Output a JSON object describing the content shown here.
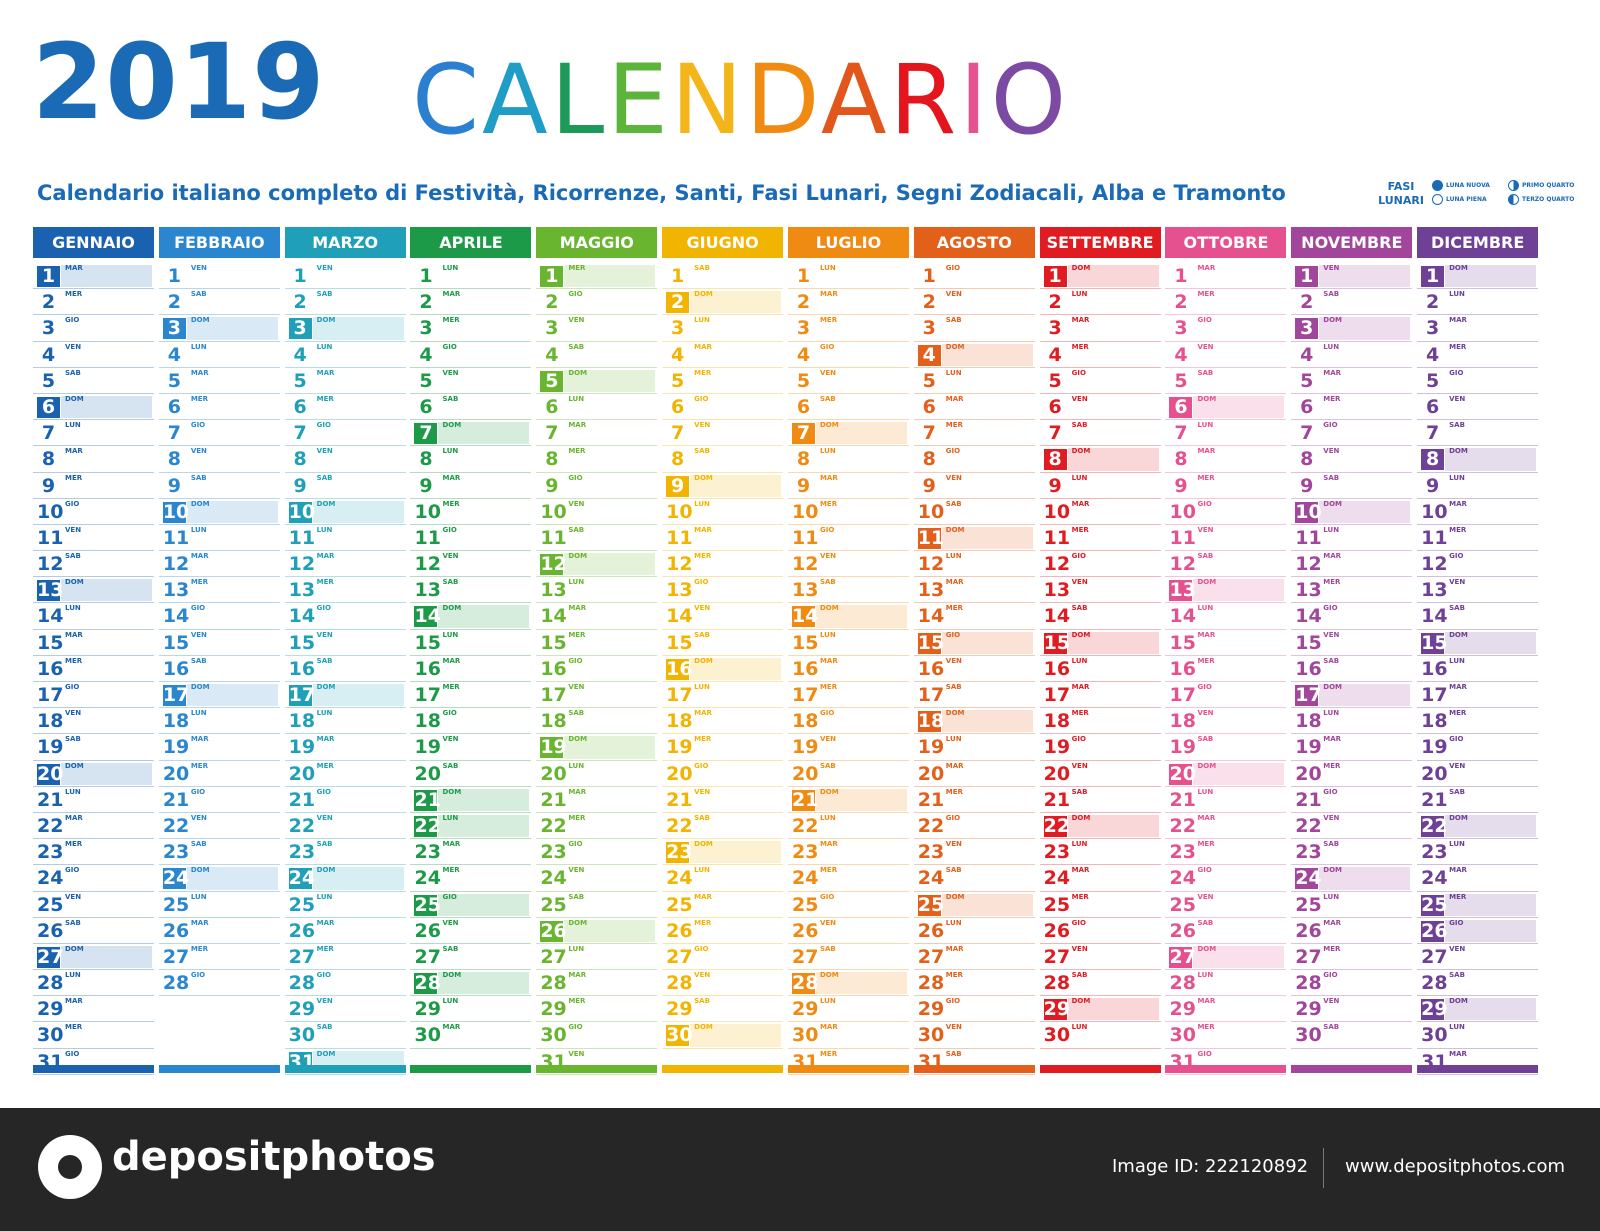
{
  "header": {
    "year": "2019",
    "title_letters": [
      {
        "ch": "C",
        "color": "#2a7fd0"
      },
      {
        "ch": "A",
        "color": "#1f9dc7"
      },
      {
        "ch": "L",
        "color": "#1d9a5a"
      },
      {
        "ch": "E",
        "color": "#5cb43a"
      },
      {
        "ch": "N",
        "color": "#f3b51a"
      },
      {
        "ch": "D",
        "color": "#f08a10"
      },
      {
        "ch": "A",
        "color": "#e2561b"
      },
      {
        "ch": "R",
        "color": "#e3161d"
      },
      {
        "ch": "I",
        "color": "#e4538f"
      },
      {
        "ch": "O",
        "color": "#7d4aa3"
      }
    ],
    "subtitle": "Calendario italiano completo di Festività, Ricorrenze, Santi, Fasi Lunari, Segni Zodiacali, Alba e Tramonto",
    "fasi_label": "FASI LUNARI",
    "moon_legend": [
      {
        "key": "new",
        "label": "LUNA NUOVA"
      },
      {
        "key": "first",
        "label": "PRIMO QUARTO"
      },
      {
        "key": "full",
        "label": "LUNA PIENA"
      },
      {
        "key": "last",
        "label": "TERZO QUARTO"
      }
    ]
  },
  "colors": {
    "blue": "#1a6ab5"
  },
  "months": [
    {
      "name": "GENNAIO",
      "color": "#1a62b0",
      "start_wd": 1,
      "length": 31,
      "holidays": [
        1,
        6
      ]
    },
    {
      "name": "FEBBRAIO",
      "color": "#2a87cf",
      "start_wd": 4,
      "length": 28,
      "holidays": []
    },
    {
      "name": "MARZO",
      "color": "#1fa0b8",
      "start_wd": 4,
      "length": 31,
      "holidays": []
    },
    {
      "name": "APRILE",
      "color": "#1d9a48",
      "start_wd": 0,
      "length": 30,
      "holidays": [
        21,
        22,
        25
      ]
    },
    {
      "name": "MAGGIO",
      "color": "#6ab530",
      "start_wd": 2,
      "length": 31,
      "holidays": [
        1
      ]
    },
    {
      "name": "GIUGNO",
      "color": "#f1b400",
      "start_wd": 5,
      "length": 30,
      "holidays": [
        2
      ]
    },
    {
      "name": "LUGLIO",
      "color": "#ef8a12",
      "start_wd": 0,
      "length": 31,
      "holidays": []
    },
    {
      "name": "AGOSTO",
      "color": "#e2601a",
      "start_wd": 3,
      "length": 31,
      "holidays": [
        15
      ]
    },
    {
      "name": "SETTEMBRE",
      "color": "#e01b22",
      "start_wd": 6,
      "length": 30,
      "holidays": []
    },
    {
      "name": "OTTOBRE",
      "color": "#e5518f",
      "start_wd": 1,
      "length": 31,
      "holidays": []
    },
    {
      "name": "NOVEMBRE",
      "color": "#a1469b",
      "start_wd": 4,
      "length": 30,
      "holidays": [
        1
      ]
    },
    {
      "name": "DICEMBRE",
      "color": "#6e4096",
      "start_wd": 6,
      "length": 31,
      "holidays": [
        8,
        25,
        26
      ]
    }
  ],
  "weekday_names": [
    "LUN",
    "MAR",
    "MER",
    "GIO",
    "VEN",
    "SAB",
    "DOM"
  ],
  "watermark": {
    "brand": "depositphotos",
    "image_id": "Image ID: 222120892",
    "url": "www.depositphotos.com"
  }
}
